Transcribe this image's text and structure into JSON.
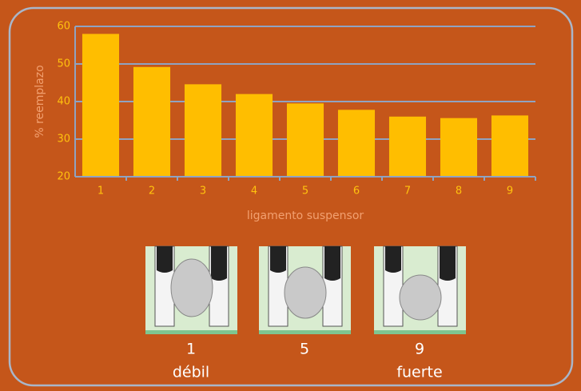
{
  "chart_data": {
    "type": "bar",
    "categories": [
      "1",
      "2",
      "3",
      "4",
      "5",
      "6",
      "7",
      "8",
      "9"
    ],
    "values": [
      58,
      49.2,
      44.6,
      42,
      39.5,
      37.8,
      36,
      35.6,
      36.3
    ],
    "color": "#ffbe00",
    "ylim": [
      20,
      60
    ],
    "yticks": [
      20,
      30,
      40,
      50,
      60
    ],
    "grid": true,
    "y_label": "% reemplazo",
    "x_label": "ligamento suspensor"
  },
  "images": [
    {
      "label": "1",
      "caption": "débil"
    },
    {
      "label": "5"
    },
    {
      "label": "9",
      "caption": "fuerte"
    }
  ]
}
